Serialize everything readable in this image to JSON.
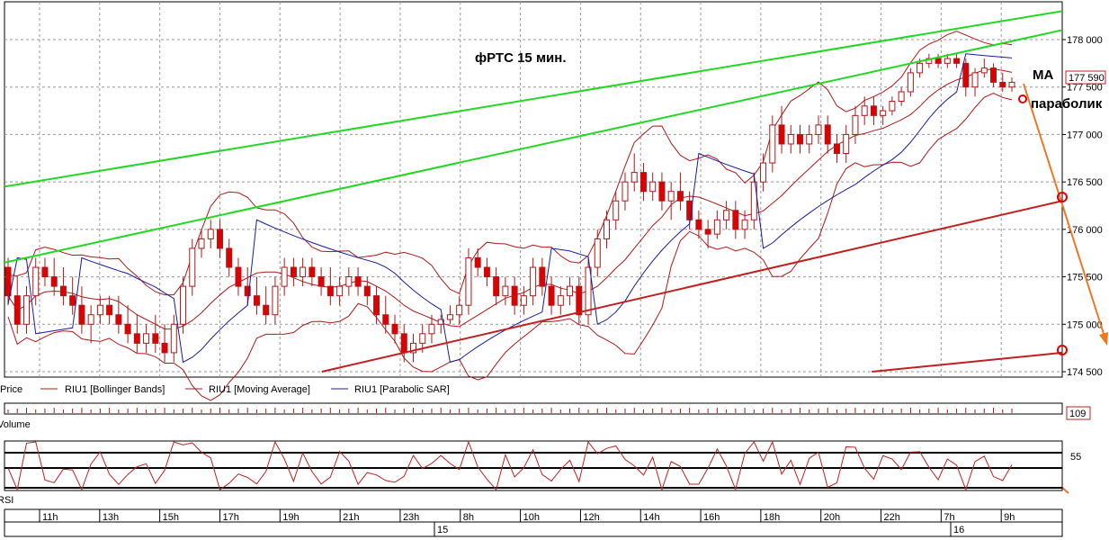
{
  "chart_data": {
    "type": "candlestick",
    "title": "фРТС   15 мин.",
    "annotations": [
      "MA",
      "параболик"
    ],
    "price_axis": {
      "range": [
        174500,
        178200
      ],
      "ticks": [
        "178 000",
        "177 500",
        "177 000",
        "176 500",
        "176 000",
        "175 500",
        "175 000",
        "174 500"
      ],
      "last_price": "177 590"
    },
    "legend": [
      "Price",
      "RIU1 [Bollinger Bands]",
      "RIU1 [Moving Average]",
      "RIU1 [Parabolic SAR]"
    ],
    "volume": {
      "label": "Volume",
      "last_value": "109"
    },
    "rsi": {
      "label": "RSI",
      "tick": "55"
    },
    "time_axis": {
      "hour_labels": [
        "11h",
        "13h",
        "15h",
        "17h",
        "19h",
        "21h",
        "23h",
        "8h",
        "10h",
        "12h",
        "14h",
        "16h",
        "18h",
        "20h",
        "22h",
        "7h",
        "9h"
      ],
      "day_labels": [
        "15",
        "16"
      ]
    },
    "candles": [
      [
        175600,
        175700,
        175200,
        175300
      ],
      [
        175300,
        175500,
        174900,
        175000
      ],
      [
        175000,
        175400,
        174900,
        175300
      ],
      [
        175300,
        175700,
        175200,
        175600
      ],
      [
        175600,
        175700,
        175400,
        175500
      ],
      [
        175500,
        175700,
        175300,
        175400
      ],
      [
        175400,
        175600,
        175200,
        175300
      ],
      [
        175300,
        175500,
        175100,
        175200
      ],
      [
        175200,
        175400,
        174900,
        175000
      ],
      [
        175000,
        175200,
        174800,
        175100
      ],
      [
        175100,
        175300,
        175000,
        175200
      ],
      [
        175200,
        175300,
        175000,
        175100
      ],
      [
        175100,
        175300,
        174900,
        175000
      ],
      [
        175000,
        175200,
        174800,
        174900
      ],
      [
        174900,
        175100,
        174700,
        174800
      ],
      [
        174800,
        175000,
        174700,
        174900
      ],
      [
        174900,
        175100,
        174700,
        174800
      ],
      [
        174800,
        175000,
        174600,
        174700
      ],
      [
        174700,
        175100,
        174600,
        175000
      ],
      [
        175000,
        175500,
        174900,
        175400
      ],
      [
        175400,
        175900,
        175300,
        175800
      ],
      [
        175800,
        176000,
        175700,
        175900
      ],
      [
        175900,
        176100,
        175800,
        176000
      ],
      [
        176000,
        176100,
        175700,
        175800
      ],
      [
        175800,
        175900,
        175500,
        175600
      ],
      [
        175600,
        175700,
        175300,
        175400
      ],
      [
        175400,
        175600,
        175200,
        175300
      ],
      [
        175300,
        175500,
        175100,
        175200
      ],
      [
        175200,
        175400,
        175000,
        175100
      ],
      [
        175100,
        175500,
        175000,
        175400
      ],
      [
        175400,
        175700,
        175300,
        175600
      ],
      [
        175600,
        175700,
        175400,
        175500
      ],
      [
        175500,
        175700,
        175400,
        175600
      ],
      [
        175600,
        175700,
        175400,
        175500
      ],
      [
        175500,
        175600,
        175300,
        175400
      ],
      [
        175400,
        175600,
        175200,
        175300
      ],
      [
        175300,
        175500,
        175200,
        175400
      ],
      [
        175400,
        175600,
        175300,
        175500
      ],
      [
        175500,
        175600,
        175300,
        175400
      ],
      [
        175400,
        175500,
        175200,
        175300
      ],
      [
        175300,
        175400,
        175000,
        175100
      ],
      [
        175100,
        175300,
        174900,
        175000
      ],
      [
        175000,
        175100,
        174800,
        174900
      ],
      [
        174900,
        175000,
        174600,
        174700
      ],
      [
        174700,
        174900,
        174600,
        174800
      ],
      [
        174800,
        175000,
        174700,
        174900
      ],
      [
        174900,
        175100,
        174800,
        175000
      ],
      [
        175000,
        175100,
        174900,
        175050
      ],
      [
        175050,
        175200,
        175000,
        175100
      ],
      [
        175100,
        175300,
        175000,
        175200
      ],
      [
        175200,
        175800,
        175100,
        175700
      ],
      [
        175700,
        175800,
        175500,
        175600
      ],
      [
        175600,
        175700,
        175400,
        175500
      ],
      [
        175500,
        175600,
        175200,
        175300
      ],
      [
        175300,
        175500,
        175200,
        175400
      ],
      [
        175400,
        175500,
        175100,
        175200
      ],
      [
        175200,
        175400,
        175100,
        175300
      ],
      [
        175300,
        175700,
        175200,
        175600
      ],
      [
        175600,
        175700,
        175300,
        175400
      ],
      [
        175400,
        175500,
        175100,
        175200
      ],
      [
        175200,
        175400,
        175100,
        175300
      ],
      [
        175300,
        175500,
        175200,
        175400
      ],
      [
        175400,
        175500,
        175000,
        175100
      ],
      [
        175100,
        175700,
        175000,
        175600
      ],
      [
        175600,
        176000,
        175500,
        175900
      ],
      [
        175900,
        176200,
        175800,
        176100
      ],
      [
        176100,
        176400,
        176000,
        176300
      ],
      [
        176300,
        176600,
        176200,
        176500
      ],
      [
        176500,
        176800,
        176400,
        176600
      ],
      [
        176600,
        176700,
        176300,
        176400
      ],
      [
        176400,
        176600,
        176300,
        176500
      ],
      [
        176500,
        176600,
        176200,
        176300
      ],
      [
        176300,
        176500,
        176100,
        176400
      ],
      [
        176400,
        176600,
        176200,
        176300
      ],
      [
        176300,
        176400,
        176000,
        176100
      ],
      [
        176100,
        176200,
        175900,
        176000
      ],
      [
        176000,
        176100,
        175800,
        175950
      ],
      [
        175950,
        176200,
        175900,
        176100
      ],
      [
        176100,
        176300,
        176000,
        176200
      ],
      [
        176200,
        176300,
        175900,
        176000
      ],
      [
        176000,
        176200,
        175900,
        176100
      ],
      [
        176100,
        176600,
        176000,
        176500
      ],
      [
        176500,
        176800,
        176400,
        176700
      ],
      [
        176700,
        177200,
        176600,
        177100
      ],
      [
        177100,
        177300,
        176800,
        176900
      ],
      [
        176900,
        177100,
        176800,
        177000
      ],
      [
        177000,
        177100,
        176800,
        176900
      ],
      [
        176900,
        177100,
        176800,
        177000
      ],
      [
        177000,
        177200,
        176900,
        177100
      ],
      [
        177100,
        177200,
        176800,
        176900
      ],
      [
        176900,
        177000,
        176700,
        176800
      ],
      [
        176800,
        177100,
        176700,
        177000
      ],
      [
        177000,
        177300,
        176900,
        177200
      ],
      [
        177200,
        177400,
        177100,
        177300
      ],
      [
        177300,
        177400,
        177100,
        177200
      ],
      [
        177200,
        177300,
        177100,
        177250
      ],
      [
        177250,
        177400,
        177200,
        177350
      ],
      [
        177350,
        177500,
        177300,
        177450
      ],
      [
        177450,
        177700,
        177400,
        177650
      ],
      [
        177650,
        177800,
        177600,
        177750
      ],
      [
        177750,
        177850,
        177700,
        177800
      ],
      [
        177800,
        177850,
        177700,
        177750
      ],
      [
        177750,
        177850,
        177700,
        177800
      ],
      [
        177800,
        177850,
        177700,
        177750
      ],
      [
        177750,
        177800,
        177400,
        177500
      ],
      [
        177500,
        177700,
        177400,
        177650
      ],
      [
        177650,
        177800,
        177600,
        177700
      ],
      [
        177700,
        177750,
        177500,
        177550
      ],
      [
        177550,
        177650,
        177450,
        177500
      ],
      [
        177500,
        177600,
        177450,
        177550
      ]
    ],
    "trendlines": [
      {
        "color": "#22d822",
        "from": [
          0,
          176450
        ],
        "to": [
          1,
          178300
        ]
      },
      {
        "color": "#22d822",
        "from": [
          0,
          175650
        ],
        "to": [
          1,
          178100
        ]
      },
      {
        "color": "#c02020",
        "from": [
          0.3,
          174500
        ],
        "to": [
          1,
          176300
        ]
      },
      {
        "color": "#c02020",
        "from": [
          0.82,
          174500
        ],
        "to": [
          1,
          174700
        ]
      }
    ],
    "colors": {
      "up": "#ffffff",
      "down": "#dd0000",
      "bollinger": "#b01818",
      "ma": "#b01818",
      "sar": "#1a1aa0",
      "green": "#22d822",
      "arrow": "#ee7722",
      "grid": "#999999"
    }
  }
}
